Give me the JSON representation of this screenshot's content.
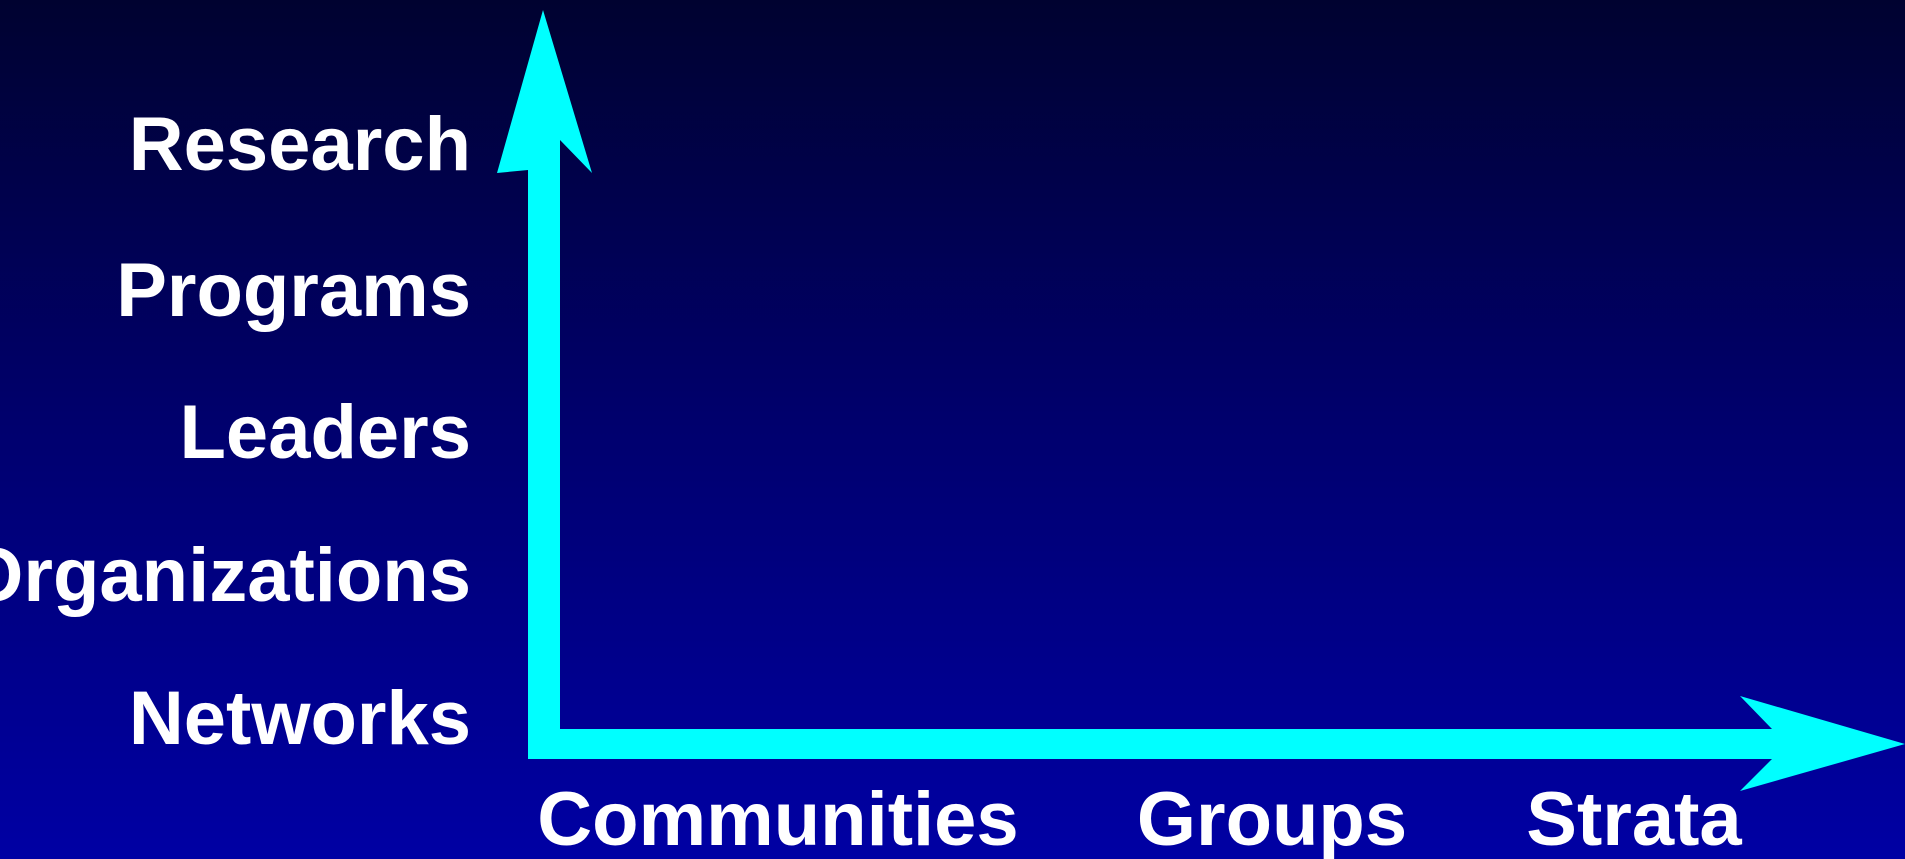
{
  "y_labels": [
    "Research",
    "Programs",
    "Leaders",
    "Organizations",
    "Networks"
  ],
  "x_labels": [
    "Communities",
    "Groups",
    "Strata"
  ]
}
